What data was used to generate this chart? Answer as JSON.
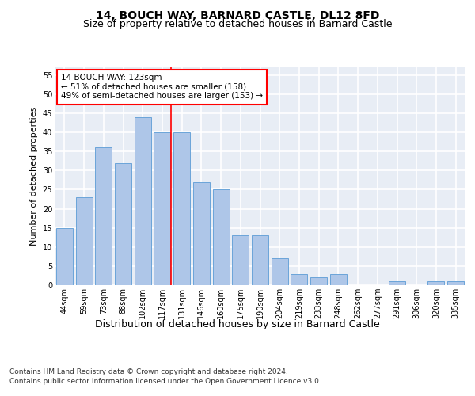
{
  "title1": "14, BOUCH WAY, BARNARD CASTLE, DL12 8FD",
  "title2": "Size of property relative to detached houses in Barnard Castle",
  "xlabel": "Distribution of detached houses by size in Barnard Castle",
  "ylabel": "Number of detached properties",
  "footnote1": "Contains HM Land Registry data © Crown copyright and database right 2024.",
  "footnote2": "Contains public sector information licensed under the Open Government Licence v3.0.",
  "categories": [
    "44sqm",
    "59sqm",
    "73sqm",
    "88sqm",
    "102sqm",
    "117sqm",
    "131sqm",
    "146sqm",
    "160sqm",
    "175sqm",
    "190sqm",
    "204sqm",
    "219sqm",
    "233sqm",
    "248sqm",
    "262sqm",
    "277sqm",
    "291sqm",
    "306sqm",
    "320sqm",
    "335sqm"
  ],
  "values": [
    15,
    23,
    36,
    32,
    44,
    40,
    40,
    27,
    25,
    13,
    13,
    7,
    3,
    2,
    3,
    0,
    0,
    1,
    0,
    1,
    1
  ],
  "bar_color": "#aec6e8",
  "bar_edge_color": "#5b9bd5",
  "reference_line_x": 5.43,
  "reference_line_label": "14 BOUCH WAY: 123sqm",
  "annotation_line1": "← 51% of detached houses are smaller (158)",
  "annotation_line2": "49% of semi-detached houses are larger (153) →",
  "annotation_box_facecolor": "white",
  "annotation_box_edgecolor": "red",
  "vline_color": "red",
  "ylim": [
    0,
    57
  ],
  "yticks": [
    0,
    5,
    10,
    15,
    20,
    25,
    30,
    35,
    40,
    45,
    50,
    55
  ],
  "background_color": "#e8edf5",
  "grid_color": "white",
  "title1_fontsize": 10,
  "title2_fontsize": 9,
  "xlabel_fontsize": 9,
  "ylabel_fontsize": 8,
  "tick_fontsize": 7,
  "annotation_fontsize": 7.5,
  "footnote_fontsize": 6.5
}
